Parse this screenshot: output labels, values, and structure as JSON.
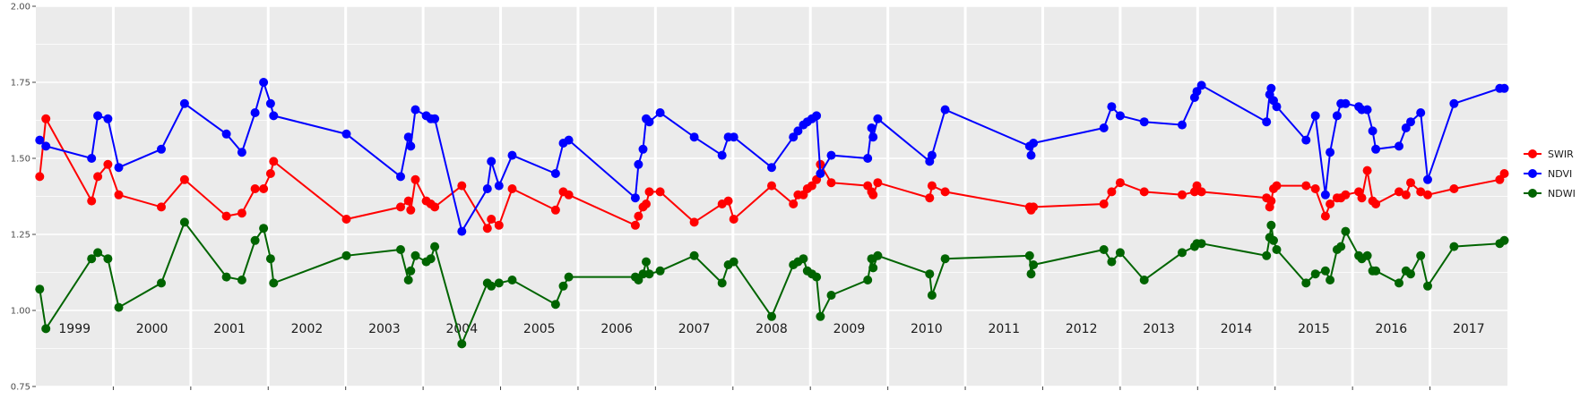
{
  "chart_data": {
    "type": "line",
    "title": "",
    "xlabel": "",
    "ylabel": "",
    "ylim": [
      0.75,
      2.0
    ],
    "yticks": [
      "0.75",
      "1.00",
      "1.25",
      "1.50",
      "1.75",
      "2.00"
    ],
    "xlim": [
      1998.5,
      2017.5
    ],
    "year_labels": [
      "1999",
      "2000",
      "2001",
      "2002",
      "2003",
      "2004",
      "2005",
      "2006",
      "2007",
      "2008",
      "2009",
      "2010",
      "2011",
      "2012",
      "2013",
      "2014",
      "2015",
      "2016",
      "2017"
    ],
    "grid": true,
    "legend_position": "right",
    "colors": {
      "SWIR": "#ff0000",
      "NDVI": "#0000ff",
      "NDWI": "#006400",
      "panel": "#ebebeb",
      "grid": "#ffffff"
    },
    "x": [
      1998.55,
      1998.63,
      1999.22,
      1999.3,
      1999.43,
      1999.57,
      2000.12,
      2000.42,
      2000.96,
      2001.16,
      2001.33,
      2001.44,
      2001.53,
      2001.57,
      2002.51,
      2003.21,
      2003.31,
      2003.34,
      2003.4,
      2003.54,
      2003.6,
      2003.65,
      2004.0,
      2004.33,
      2004.38,
      2004.48,
      2004.65,
      2005.21,
      2005.31,
      2005.38,
      2006.24,
      2006.28,
      2006.34,
      2006.38,
      2006.42,
      2006.56,
      2007.0,
      2007.36,
      2007.44,
      2007.51,
      2008.0,
      2008.28,
      2008.34,
      2008.41,
      2008.46,
      2008.52,
      2008.58,
      2008.63,
      2008.77,
      2009.24,
      2009.29,
      2009.31,
      2009.37,
      2010.04,
      2010.07,
      2010.24,
      2011.33,
      2011.35,
      2011.38,
      2012.29,
      2012.39,
      2012.5,
      2012.81,
      2013.3,
      2013.46,
      2013.49,
      2013.55,
      2014.39,
      2014.43,
      2014.45,
      2014.48,
      2014.52,
      2014.9,
      2015.02,
      2015.15,
      2015.21,
      2015.3,
      2015.35,
      2015.41,
      2015.58,
      2015.62,
      2015.69,
      2015.76,
      2015.8,
      2016.1,
      2016.19,
      2016.25,
      2016.38,
      2016.47,
      2016.81,
      2017.4,
      2017.46
    ],
    "series": [
      {
        "name": "SWIR",
        "color": "#ff0000",
        "values": [
          1.44,
          1.63,
          1.36,
          1.44,
          1.48,
          1.38,
          1.34,
          1.43,
          1.31,
          1.32,
          1.4,
          1.4,
          1.45,
          1.49,
          1.3,
          1.34,
          1.36,
          1.33,
          1.43,
          1.36,
          1.35,
          1.34,
          1.41,
          1.27,
          1.3,
          1.28,
          1.4,
          1.33,
          1.39,
          1.38,
          1.28,
          1.31,
          1.34,
          1.35,
          1.39,
          1.39,
          1.29,
          1.35,
          1.36,
          1.3,
          1.41,
          1.35,
          1.38,
          1.38,
          1.4,
          1.41,
          1.43,
          1.48,
          1.42,
          1.41,
          1.39,
          1.38,
          1.42,
          1.37,
          1.41,
          1.39,
          1.34,
          1.33,
          1.34,
          1.35,
          1.39,
          1.42,
          1.39,
          1.38,
          1.39,
          1.41,
          1.39,
          1.37,
          1.34,
          1.36,
          1.4,
          1.41,
          1.41,
          1.4,
          1.31,
          1.35,
          1.37,
          1.37,
          1.38,
          1.39,
          1.37,
          1.46,
          1.36,
          1.35,
          1.39,
          1.38,
          1.42,
          1.39,
          1.38,
          1.4,
          1.43,
          1.45
        ]
      },
      {
        "name": "NDVI",
        "color": "#0000ff",
        "values": [
          1.56,
          1.54,
          1.5,
          1.64,
          1.63,
          1.47,
          1.53,
          1.68,
          1.58,
          1.52,
          1.65,
          1.75,
          1.68,
          1.64,
          1.58,
          1.44,
          1.57,
          1.54,
          1.66,
          1.64,
          1.63,
          1.63,
          1.26,
          1.4,
          1.49,
          1.41,
          1.51,
          1.45,
          1.55,
          1.56,
          1.37,
          1.48,
          1.53,
          1.63,
          1.62,
          1.65,
          1.57,
          1.51,
          1.57,
          1.57,
          1.47,
          1.57,
          1.59,
          1.61,
          1.62,
          1.63,
          1.64,
          1.45,
          1.51,
          1.5,
          1.6,
          1.57,
          1.63,
          1.49,
          1.51,
          1.66,
          1.54,
          1.51,
          1.55,
          1.6,
          1.67,
          1.64,
          1.62,
          1.61,
          1.7,
          1.72,
          1.74,
          1.62,
          1.71,
          1.73,
          1.69,
          1.67,
          1.56,
          1.64,
          1.38,
          1.52,
          1.64,
          1.68,
          1.68,
          1.67,
          1.66,
          1.66,
          1.59,
          1.53,
          1.54,
          1.6,
          1.62,
          1.65,
          1.43,
          1.68,
          1.73,
          1.73
        ]
      },
      {
        "name": "NDWI",
        "color": "#006400",
        "values": [
          1.07,
          0.94,
          1.17,
          1.19,
          1.17,
          1.01,
          1.09,
          1.29,
          1.11,
          1.1,
          1.23,
          1.27,
          1.17,
          1.09,
          1.18,
          1.2,
          1.1,
          1.13,
          1.18,
          1.16,
          1.17,
          1.21,
          0.89,
          1.09,
          1.08,
          1.09,
          1.1,
          1.02,
          1.08,
          1.11,
          1.11,
          1.1,
          1.12,
          1.16,
          1.12,
          1.13,
          1.18,
          1.09,
          1.15,
          1.16,
          0.98,
          1.15,
          1.16,
          1.17,
          1.13,
          1.12,
          1.11,
          0.98,
          1.05,
          1.1,
          1.17,
          1.14,
          1.18,
          1.12,
          1.05,
          1.17,
          1.18,
          1.12,
          1.15,
          1.2,
          1.16,
          1.19,
          1.1,
          1.19,
          1.21,
          1.22,
          1.22,
          1.18,
          1.24,
          1.28,
          1.23,
          1.2,
          1.09,
          1.12,
          1.13,
          1.1,
          1.2,
          1.21,
          1.26,
          1.18,
          1.17,
          1.18,
          1.13,
          1.13,
          1.09,
          1.13,
          1.12,
          1.18,
          1.08,
          1.21,
          1.22,
          1.23
        ]
      }
    ]
  },
  "legend": {
    "items": [
      "SWIR",
      "NDVI",
      "NDWI"
    ]
  }
}
